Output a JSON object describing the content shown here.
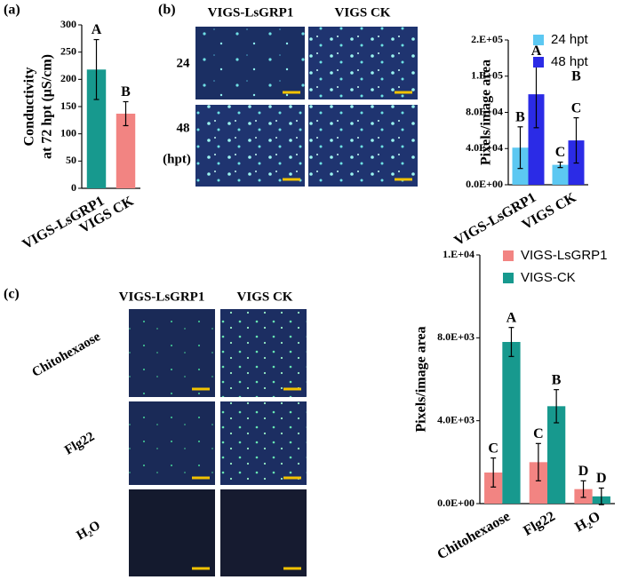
{
  "chart_data": [
    {
      "type": "bar",
      "panel": "(a)",
      "ylabel": [
        "Conductivity",
        "at 72 hpt  (μS/cm)"
      ],
      "categories": [
        "VIGS-LsGRP1",
        "VIGS CK"
      ],
      "values": [
        218,
        137
      ],
      "errors": [
        55,
        22
      ],
      "colors": [
        "#17998e",
        "#f28482"
      ],
      "letters": [
        "A",
        "B"
      ],
      "ylim": [
        0,
        300
      ],
      "yticks": [
        0,
        50,
        100,
        150,
        200,
        250,
        300
      ]
    },
    {
      "type": "bar",
      "panel": "(b)",
      "ylabel": [
        "Pixels/image area"
      ],
      "categories": [
        "VIGS-LsGRP1",
        "VIGS CK"
      ],
      "series": [
        {
          "name": "24 hpt",
          "color": "#5cc8f2",
          "values": [
            41000,
            22000
          ],
          "errors": [
            23000,
            3000
          ],
          "letters": [
            [
              "B"
            ],
            [
              "C"
            ]
          ]
        },
        {
          "name": "48 hpt",
          "color": "#2b2be6",
          "values": [
            100000,
            49000
          ],
          "errors": [
            37000,
            25000
          ],
          "letters": [
            [
              "A"
            ],
            [
              "B",
              "C"
            ]
          ]
        }
      ],
      "ylim": [
        0,
        160000
      ],
      "yticks": [
        {
          "value": 0,
          "label": "0.0E+00"
        },
        {
          "value": 40000,
          "label": "4.0E+04"
        },
        {
          "value": 80000,
          "label": "8.0E+04"
        },
        {
          "value": 120000,
          "label": "1.E+05"
        },
        {
          "value": 160000,
          "label": "2.E+05"
        }
      ]
    },
    {
      "type": "bar",
      "panel": "(c)",
      "ylabel": [
        "Pixels/image area"
      ],
      "categories": [
        "Chitohexaose",
        "Flg22",
        "H₂O"
      ],
      "series": [
        {
          "name": "VIGS-LsGRP1",
          "color": "#f28482",
          "values": [
            1500,
            2000,
            700
          ],
          "errors": [
            700,
            900,
            400
          ],
          "letters": [
            [
              "C"
            ],
            [
              "C"
            ],
            [
              "D"
            ]
          ]
        },
        {
          "name": "VIGS-CK",
          "color": "#17998e",
          "values": [
            7800,
            4700,
            350
          ],
          "errors": [
            700,
            800,
            400
          ],
          "letters": [
            [
              "A"
            ],
            [
              "B"
            ],
            [
              "D"
            ]
          ]
        }
      ],
      "ylim": [
        0,
        12000
      ],
      "yticks": [
        {
          "value": 0,
          "label": "0.0E+00"
        },
        {
          "value": 4000,
          "label": "4.0E+03"
        },
        {
          "value": 8000,
          "label": "8.0E+03"
        },
        {
          "value": 12000,
          "label": "1.E+04"
        }
      ]
    }
  ],
  "image_panels": [
    {
      "columns": [
        "VIGS-LsGRP1",
        "VIGS CK"
      ],
      "rows": [
        "24",
        "48"
      ],
      "row_unit": "(hpt)"
    },
    {
      "columns": [
        "VIGS-LsGRP1",
        "VIGS CK"
      ],
      "rows": [
        "Chitohexaose",
        "Flg22",
        "H₂O"
      ]
    }
  ]
}
